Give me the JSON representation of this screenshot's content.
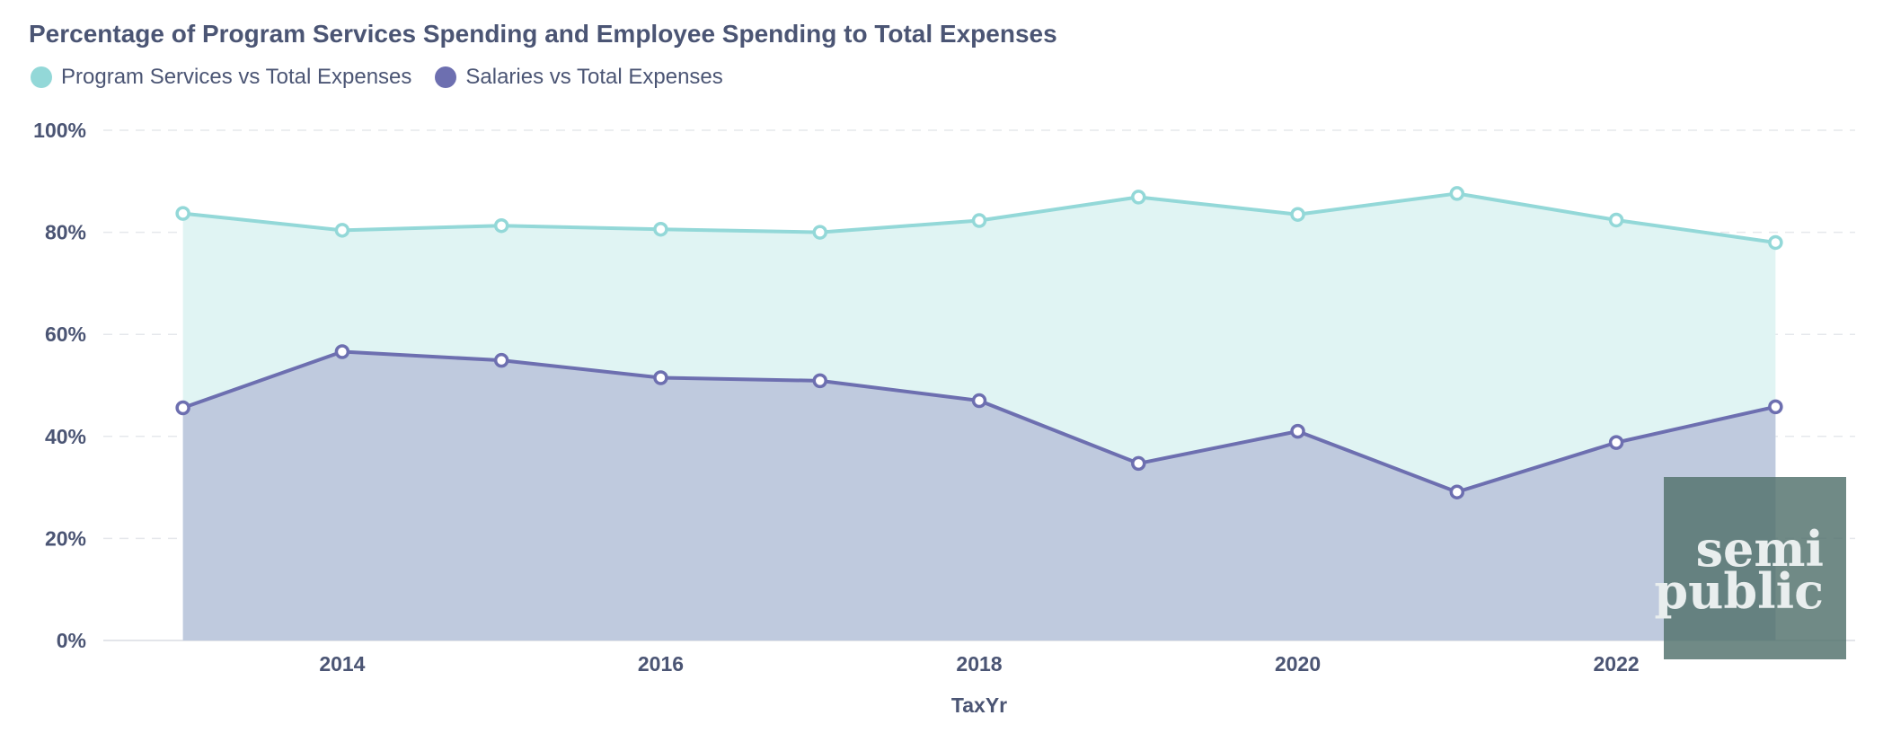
{
  "chart_data": {
    "type": "area",
    "title": "Percentage of Program Services Spending and Employee Spending to Total Expenses",
    "xlabel": "TaxYr",
    "ylabel": "",
    "x": [
      2013,
      2014,
      2015,
      2016,
      2017,
      2018,
      2019,
      2020,
      2021,
      2022,
      2023
    ],
    "xlim": [
      2012.5,
      2023.5
    ],
    "xticks": [
      "2014",
      "2016",
      "2018",
      "2020",
      "2022"
    ],
    "ylim": [
      0,
      100
    ],
    "yticks": [
      "0%",
      "20%",
      "40%",
      "60%",
      "80%",
      "100%"
    ],
    "grid": true,
    "legend_position": "top-left",
    "series": [
      {
        "name": "Program Services vs Total Expenses",
        "color": "#93d8d8",
        "fill": "#e0f4f3",
        "values": [
          83.7,
          80.4,
          81.3,
          80.6,
          80.0,
          82.3,
          86.9,
          83.5,
          87.6,
          82.4,
          78.0
        ]
      },
      {
        "name": "Salaries vs Total Expenses",
        "color": "#6d6fb0",
        "fill": "#bfcade",
        "values": [
          45.6,
          56.6,
          54.9,
          51.5,
          50.9,
          47.0,
          34.7,
          41.0,
          29.1,
          38.8,
          45.8
        ]
      }
    ]
  },
  "watermark": {
    "line1": "semi",
    "line2": "public",
    "color": "#51706b"
  }
}
